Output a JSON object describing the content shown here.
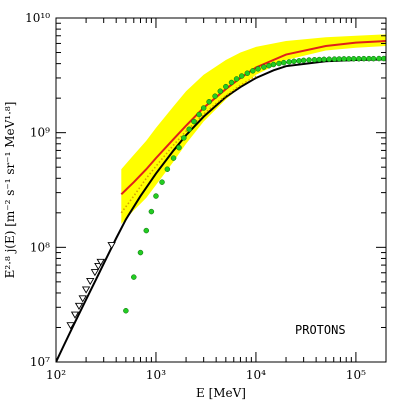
{
  "chart_data": {
    "type": "line",
    "xlabel": "E [MeV]",
    "ylabel": "E²·⁸ j(E) [m⁻² s⁻¹ sr⁻¹ MeV¹·⁸]",
    "x_scale": "log",
    "y_scale": "log",
    "xlim": [
      100,
      200000
    ],
    "ylim": [
      10000000,
      10000000000
    ],
    "x_ticks": [
      {
        "value": 100,
        "label": "10²"
      },
      {
        "value": 1000,
        "label": "10³"
      },
      {
        "value": 10000,
        "label": "10⁴"
      },
      {
        "value": 100000,
        "label": "10⁵"
      }
    ],
    "y_ticks": [
      {
        "value": 10000000,
        "label": "10⁷"
      },
      {
        "value": 100000000,
        "label": "10⁸"
      },
      {
        "value": 1000000000,
        "label": "10⁹"
      },
      {
        "value": 10000000000,
        "label": "10¹⁰"
      }
    ],
    "annotation": "PROTONS",
    "colors": {
      "band": "#ffff00",
      "red_line": "#e0201a",
      "black_line": "#000000",
      "green_points": "#22cc22",
      "dotted_line": "#d4a000"
    },
    "series": [
      {
        "kind": "band",
        "x": [
          450,
          600,
          800,
          1000,
          1500,
          2000,
          3000,
          5000,
          7000,
          10000,
          20000,
          50000,
          100000,
          200000
        ],
        "y_low": [
          160000000,
          210000000,
          270000000,
          350000000,
          560000000,
          800000000,
          1250000000,
          1950000000,
          2500000000,
          3200000000,
          4300000000,
          5200000000,
          5500000000,
          5700000000
        ],
        "y_high": [
          480000000,
          640000000,
          850000000,
          1100000000,
          1700000000,
          2300000000,
          3200000000,
          4300000000,
          5000000000,
          5600000000,
          6300000000,
          6800000000,
          7000000000,
          7200000000
        ]
      },
      {
        "kind": "line",
        "x": [
          450,
          600,
          800,
          1000,
          1500,
          2000,
          3000,
          5000,
          7000,
          10000,
          20000,
          50000,
          100000,
          200000
        ],
        "y": [
          290000000,
          370000000,
          480000000,
          600000000,
          880000000,
          1150000000,
          1650000000,
          2400000000,
          3000000000,
          3700000000,
          4800000000,
          5700000000,
          6100000000,
          6300000000
        ]
      },
      {
        "kind": "line",
        "x": [
          100,
          120,
          150,
          200,
          250,
          300,
          400,
          500,
          700,
          1000,
          1500,
          2000,
          3000,
          5000,
          7000,
          10000,
          15000,
          20000,
          50000,
          100000,
          200000
        ],
        "y": [
          10000000,
          14000000,
          21000000,
          35000000,
          52000000,
          72000000,
          120000000,
          175000000,
          280000000,
          440000000,
          700000000,
          950000000,
          1380000000,
          2050000000,
          2500000000,
          3000000000,
          3500000000,
          3800000000,
          4200000000,
          4300000000,
          4350000000
        ]
      },
      {
        "kind": "dotted",
        "x": [
          450,
          600,
          800,
          1000,
          1500,
          2000,
          3000,
          4000,
          5000,
          7000,
          10000
        ],
        "y": [
          200000000,
          280000000,
          400000000,
          510000000,
          780000000,
          1030000000,
          1450000000,
          1800000000,
          2100000000,
          2600000000,
          3100000000
        ]
      },
      {
        "kind": "scatter",
        "marker": "triangle-down",
        "x": [
          140,
          155,
          170,
          185,
          200,
          220,
          245,
          265,
          280,
          360
        ],
        "y": [
          21000000,
          26000000,
          31000000,
          36000000,
          43000000,
          51000000,
          61000000,
          69000000,
          75000000,
          105000000
        ]
      },
      {
        "kind": "scatter",
        "marker": "circle",
        "x": [
          500,
          600,
          700,
          800,
          900,
          1000,
          1150,
          1300,
          1500,
          1700,
          1900,
          2150,
          2400,
          2700,
          3000,
          3400,
          3900,
          4400,
          5000,
          5700,
          6400,
          7200,
          8200,
          9300,
          10500,
          12000,
          13500,
          15000,
          17000,
          19000,
          21500,
          24000,
          27000,
          30000,
          34000,
          38500,
          43000,
          48000,
          54000,
          61000,
          68000,
          76000,
          85000,
          95000,
          107000,
          120000,
          135000,
          150000,
          170000,
          190000
        ],
        "y": [
          28000000,
          55000000,
          90000000,
          140000000,
          205000000,
          280000000,
          370000000,
          480000000,
          600000000,
          740000000,
          900000000,
          1070000000,
          1250000000,
          1440000000,
          1640000000,
          1860000000,
          2080000000,
          2300000000,
          2520000000,
          2740000000,
          2940000000,
          3120000000,
          3300000000,
          3460000000,
          3600000000,
          3730000000,
          3840000000,
          3930000000,
          4010000000,
          4080000000,
          4140000000,
          4190000000,
          4230000000,
          4270000000,
          4300000000,
          4320000000,
          4340000000,
          4360000000,
          4370000000,
          4380000000,
          4390000000,
          4400000000,
          4400000000,
          4410000000,
          4410000000,
          4420000000,
          4420000000,
          4420000000,
          4430000000,
          4430000000
        ]
      }
    ]
  }
}
